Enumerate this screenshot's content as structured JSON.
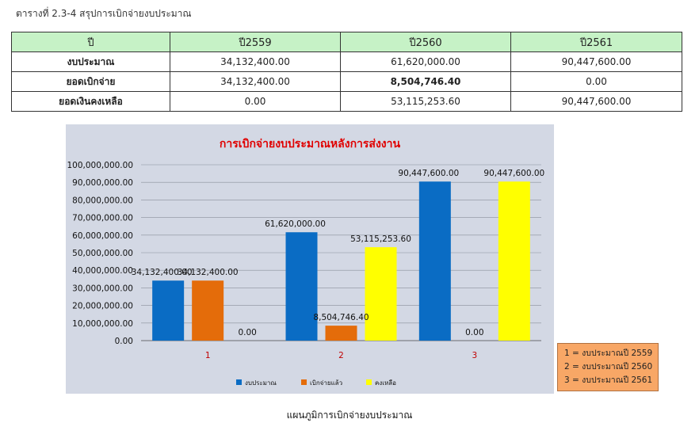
{
  "caption_top": "ตารางที่ 2.3-4 สรุปการเบิกจ่ายงบประมาณ",
  "table": {
    "headers": [
      "ปี",
      "ปี2559",
      "ปี2560",
      "ปี2561"
    ],
    "rows": [
      {
        "label": "งบประมาณ",
        "cells": [
          "34,132,400.00",
          "61,620,000.00",
          "90,447,600.00"
        ]
      },
      {
        "label": "ยอดเบิกจ่าย",
        "cells": [
          "34,132,400.00",
          "8,504,746.40",
          "0.00"
        ]
      },
      {
        "label": "ยอดเงินคงเหลือ",
        "cells": [
          "0.00",
          "53,115,253.60",
          "90,447,600.00"
        ]
      }
    ]
  },
  "chart_data": {
    "type": "bar",
    "title": "การเบิกจ่ายงบประมาณหลังการส่งงาน",
    "categories": [
      "1",
      "2",
      "3"
    ],
    "series": [
      {
        "name": "งบประมาณ",
        "color": "#0a6cc4",
        "values": [
          34132400.0,
          61620000.0,
          90447600.0
        ],
        "labels": [
          "34,132,400.00",
          "61,620,000.00",
          "90,447,600.00"
        ]
      },
      {
        "name": "เบิกจ่ายแล้ว",
        "color": "#e46c0a",
        "values": [
          34132400.0,
          8504746.4,
          0.0
        ],
        "labels": [
          "34,132,400.00",
          "8,504,746.40",
          "0.00"
        ]
      },
      {
        "name": "คงเหลือ",
        "color": "#ffff00",
        "values": [
          0.0,
          53115253.6,
          90447600.0
        ],
        "labels": [
          "0.00",
          "53,115,253.60",
          "90,447,600.00"
        ]
      }
    ],
    "ylim": [
      0,
      100000000
    ],
    "ytick_step": 10000000,
    "yticks": [
      "0.00",
      "10,000,000.00",
      "20,000,000.00",
      "30,000,000.00",
      "40,000,000.00",
      "50,000,000.00",
      "60,000,000.00",
      "70,000,000.00",
      "80,000,000.00",
      "90,000,000.00",
      "100,000,000.00"
    ],
    "grid": true,
    "legend_position": "bottom"
  },
  "key_box": [
    "1 = งบประมาณปี 2559",
    "2 = งบประมาณปี 2560",
    "3 = งบประมาณปี 2561"
  ],
  "caption_bottom": "แผนภูมิการเบิกจ่ายงบประมาณ"
}
